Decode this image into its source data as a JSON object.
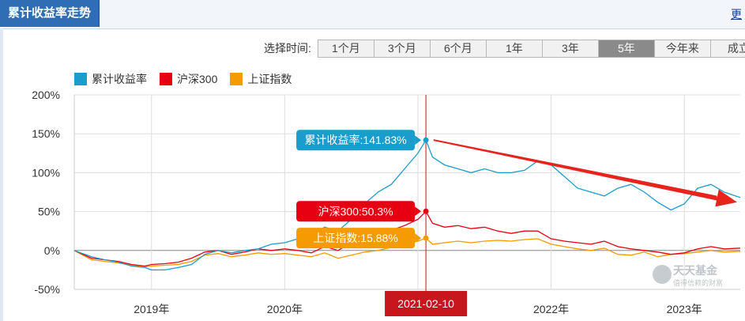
{
  "header": {
    "title": "累计收益率走势",
    "more_label": "更"
  },
  "timebar": {
    "label": "选择时间:",
    "options": [
      "1个月",
      "3个月",
      "6个月",
      "1年",
      "3年",
      "5年",
      "今年来",
      "成立"
    ],
    "active_index": 5
  },
  "legend": [
    {
      "name": "累计收益率",
      "color": "#1a9ccc"
    },
    {
      "name": "沪深300",
      "color": "#e60012"
    },
    {
      "name": "上证指数",
      "color": "#f59a00"
    }
  ],
  "tooltip": {
    "date": "2021-02-10",
    "items": [
      {
        "label": "累计收益率:141.83%",
        "value": 141.83,
        "color": "#1a9ccc"
      },
      {
        "label": "沪深300:50.3%",
        "value": 50.3,
        "color": "#e60012"
      },
      {
        "label": "上证指数:15.88%",
        "value": 15.88,
        "color": "#f59a00"
      }
    ]
  },
  "watermark": {
    "text": "天天基金",
    "sub": "值得信赖的财富"
  },
  "chart_data": {
    "type": "line",
    "y_ticks": [
      "200%",
      "150%",
      "100%",
      "50%",
      "0%",
      "-50%"
    ],
    "ylim": [
      -50,
      200
    ],
    "x_ticks": [
      "2019年",
      "2020年",
      "2022年",
      "2023年"
    ],
    "xlim": [
      2018.42,
      2023.42
    ],
    "grid": true,
    "legend_position": "top-left",
    "arrow_annotation": {
      "from": [
        2021.07,
        142
      ],
      "to": [
        2023.42,
        62
      ]
    },
    "series": [
      {
        "name": "累计收益率",
        "color": "#1a9ccc",
        "x": [
          2018.42,
          2018.55,
          2018.65,
          2018.75,
          2018.85,
          2018.95,
          2019.0,
          2019.1,
          2019.2,
          2019.3,
          2019.4,
          2019.5,
          2019.6,
          2019.7,
          2019.8,
          2019.9,
          2020.0,
          2020.1,
          2020.2,
          2020.3,
          2020.4,
          2020.5,
          2020.6,
          2020.7,
          2020.8,
          2020.9,
          2021.0,
          2021.06,
          2021.11,
          2021.2,
          2021.3,
          2021.4,
          2021.5,
          2021.6,
          2021.7,
          2021.8,
          2021.9,
          2022.0,
          2022.1,
          2022.2,
          2022.3,
          2022.4,
          2022.5,
          2022.6,
          2022.7,
          2022.8,
          2022.9,
          2023.0,
          2023.1,
          2023.2,
          2023.3,
          2023.42
        ],
        "values": [
          0,
          -8,
          -12,
          -15,
          -20,
          -22,
          -25,
          -25,
          -22,
          -18,
          -5,
          0,
          -3,
          0,
          2,
          8,
          10,
          15,
          20,
          30,
          25,
          40,
          60,
          75,
          85,
          105,
          125,
          141.83,
          120,
          110,
          105,
          100,
          105,
          100,
          100,
          103,
          115,
          110,
          95,
          80,
          75,
          70,
          80,
          85,
          75,
          62,
          52,
          60,
          80,
          85,
          75,
          68
        ]
      },
      {
        "name": "沪深300",
        "color": "#e60012",
        "x": [
          2018.42,
          2018.55,
          2018.65,
          2018.75,
          2018.85,
          2018.95,
          2019.0,
          2019.1,
          2019.2,
          2019.3,
          2019.4,
          2019.5,
          2019.6,
          2019.7,
          2019.8,
          2019.9,
          2020.0,
          2020.1,
          2020.2,
          2020.3,
          2020.4,
          2020.5,
          2020.6,
          2020.7,
          2020.8,
          2020.9,
          2021.0,
          2021.06,
          2021.11,
          2021.2,
          2021.3,
          2021.4,
          2021.5,
          2021.6,
          2021.7,
          2021.8,
          2021.9,
          2022.0,
          2022.1,
          2022.2,
          2022.3,
          2022.4,
          2022.5,
          2022.6,
          2022.7,
          2022.8,
          2022.9,
          2023.0,
          2023.1,
          2023.2,
          2023.3,
          2023.42
        ],
        "values": [
          0,
          -10,
          -12,
          -14,
          -18,
          -20,
          -18,
          -17,
          -15,
          -10,
          -2,
          0,
          -5,
          -2,
          2,
          0,
          2,
          0,
          -3,
          5,
          0,
          10,
          15,
          22,
          26,
          32,
          40,
          50.3,
          35,
          30,
          32,
          28,
          30,
          25,
          22,
          25,
          25,
          15,
          12,
          10,
          8,
          12,
          5,
          2,
          0,
          -2,
          -5,
          -3,
          2,
          5,
          2,
          3
        ]
      },
      {
        "name": "上证指数",
        "color": "#f59a00",
        "x": [
          2018.42,
          2018.55,
          2018.65,
          2018.75,
          2018.85,
          2018.95,
          2019.0,
          2019.1,
          2019.2,
          2019.3,
          2019.4,
          2019.5,
          2019.6,
          2019.7,
          2019.8,
          2019.9,
          2020.0,
          2020.1,
          2020.2,
          2020.3,
          2020.4,
          2020.5,
          2020.6,
          2020.7,
          2020.8,
          2020.9,
          2021.0,
          2021.06,
          2021.11,
          2021.2,
          2021.3,
          2021.4,
          2021.5,
          2021.6,
          2021.7,
          2021.8,
          2021.9,
          2022.0,
          2022.1,
          2022.2,
          2022.3,
          2022.4,
          2022.5,
          2022.6,
          2022.7,
          2022.8,
          2022.9,
          2023.0,
          2023.1,
          2023.2,
          2023.3,
          2023.42
        ],
        "values": [
          0,
          -12,
          -14,
          -16,
          -19,
          -21,
          -20,
          -19,
          -18,
          -14,
          -6,
          -4,
          -8,
          -6,
          -3,
          -5,
          -4,
          -6,
          -8,
          -3,
          -10,
          -6,
          -2,
          0,
          4,
          8,
          12,
          15.88,
          8,
          10,
          12,
          10,
          12,
          13,
          12,
          14,
          15,
          8,
          5,
          2,
          0,
          3,
          -5,
          -6,
          -2,
          -8,
          -5,
          -4,
          -2,
          0,
          -2,
          -1
        ]
      }
    ]
  }
}
